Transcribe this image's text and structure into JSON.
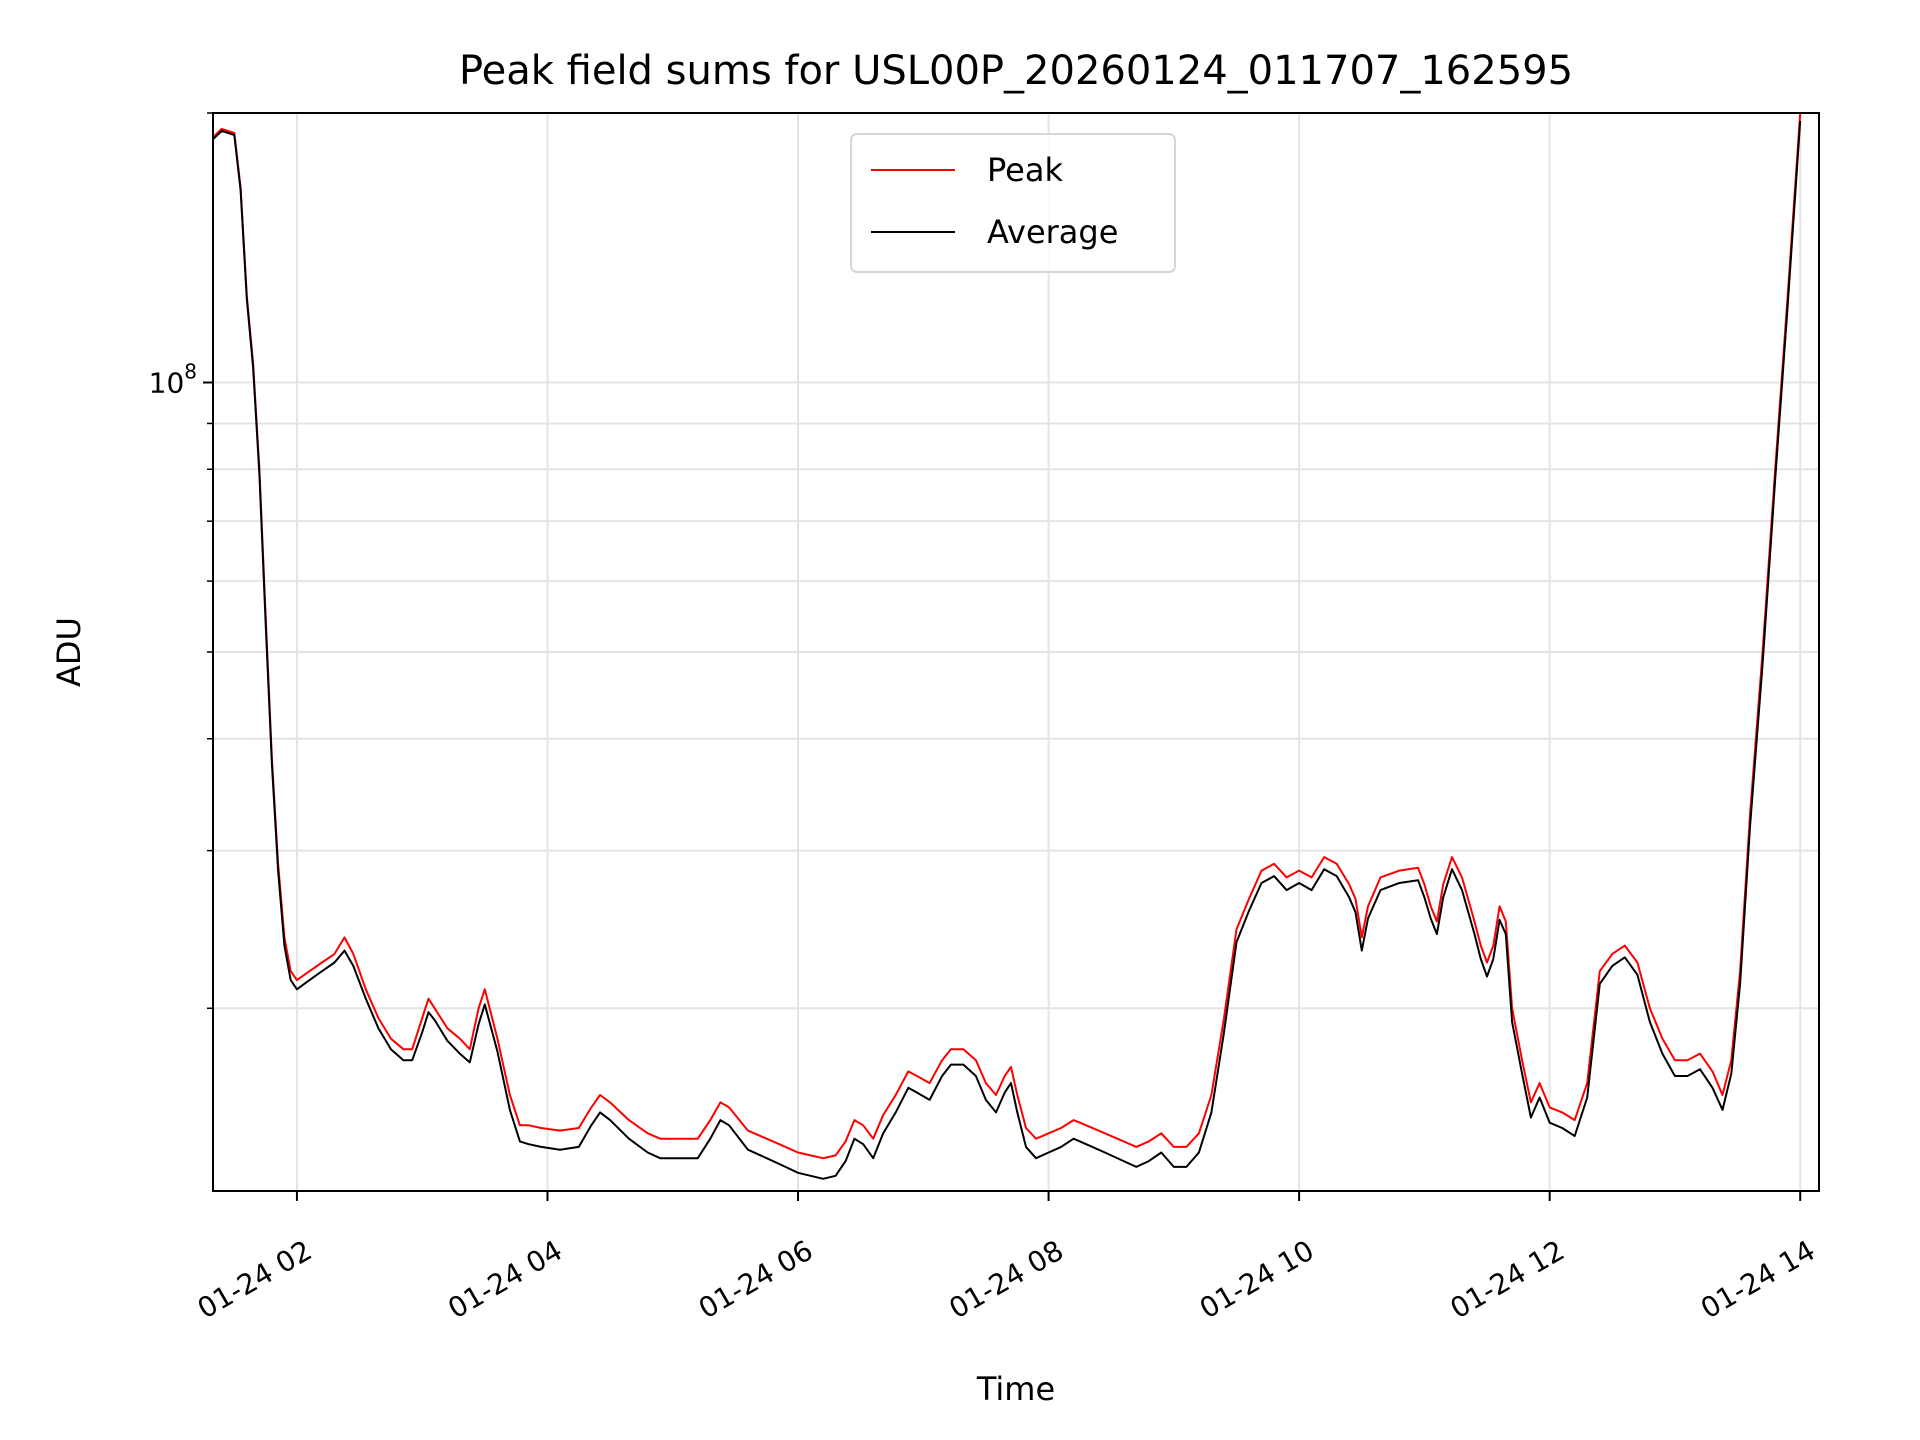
{
  "chart_data": {
    "type": "line",
    "title": "Peak field sums for USL00P_20260124_011707_162595",
    "xlabel": "Time",
    "ylabel": "ADU",
    "x_unit": "hours on 01-24",
    "xlim": [
      1.33,
      14.15
    ],
    "ylim": [
      12500000,
      200000000
    ],
    "yscale": "log",
    "grid": true,
    "legend": {
      "placement": "top-center"
    },
    "x_ticks": [
      2,
      4,
      6,
      8,
      10,
      12,
      14
    ],
    "x_tick_labels": [
      "01-24 02",
      "01-24 04",
      "01-24 06",
      "01-24 08",
      "01-24 10",
      "01-24 12",
      "01-24 14"
    ],
    "y_major_ticks": [
      100000000
    ],
    "y_major_tick_labels": [
      "10^8"
    ],
    "y_minor_ticks": [
      20000000,
      30000000,
      40000000,
      50000000,
      60000000,
      70000000,
      80000000,
      90000000,
      200000000
    ],
    "series": [
      {
        "name": "Peak",
        "color": "#ff0000",
        "points": [
          [
            1.33,
            188000000
          ],
          [
            1.4,
            192000000
          ],
          [
            1.5,
            190000000
          ],
          [
            1.55,
            165000000
          ],
          [
            1.6,
            125000000
          ],
          [
            1.65,
            105000000
          ],
          [
            1.7,
            80000000
          ],
          [
            1.75,
            55000000
          ],
          [
            1.8,
            38000000
          ],
          [
            1.85,
            29000000
          ],
          [
            1.9,
            24000000
          ],
          [
            1.95,
            22000000
          ],
          [
            2.0,
            21500000
          ],
          [
            2.1,
            22000000
          ],
          [
            2.2,
            22500000
          ],
          [
            2.3,
            23000000
          ],
          [
            2.38,
            24000000
          ],
          [
            2.45,
            23000000
          ],
          [
            2.55,
            21000000
          ],
          [
            2.65,
            19500000
          ],
          [
            2.75,
            18500000
          ],
          [
            2.85,
            18000000
          ],
          [
            2.92,
            18000000
          ],
          [
            3.0,
            19500000
          ],
          [
            3.05,
            20500000
          ],
          [
            3.1,
            20000000
          ],
          [
            3.2,
            19000000
          ],
          [
            3.3,
            18500000
          ],
          [
            3.38,
            18000000
          ],
          [
            3.45,
            20000000
          ],
          [
            3.5,
            21000000
          ],
          [
            3.6,
            18500000
          ],
          [
            3.7,
            16000000
          ],
          [
            3.78,
            14800000
          ],
          [
            3.85,
            14800000
          ],
          [
            3.95,
            14700000
          ],
          [
            4.1,
            14600000
          ],
          [
            4.25,
            14700000
          ],
          [
            4.35,
            15500000
          ],
          [
            4.42,
            16000000
          ],
          [
            4.5,
            15700000
          ],
          [
            4.65,
            15000000
          ],
          [
            4.8,
            14500000
          ],
          [
            4.9,
            14300000
          ],
          [
            5.05,
            14300000
          ],
          [
            5.2,
            14300000
          ],
          [
            5.3,
            15000000
          ],
          [
            5.38,
            15700000
          ],
          [
            5.45,
            15500000
          ],
          [
            5.6,
            14600000
          ],
          [
            5.75,
            14300000
          ],
          [
            5.9,
            14000000
          ],
          [
            6.0,
            13800000
          ],
          [
            6.1,
            13700000
          ],
          [
            6.2,
            13600000
          ],
          [
            6.3,
            13700000
          ],
          [
            6.38,
            14200000
          ],
          [
            6.45,
            15000000
          ],
          [
            6.52,
            14800000
          ],
          [
            6.6,
            14300000
          ],
          [
            6.68,
            15200000
          ],
          [
            6.78,
            16000000
          ],
          [
            6.88,
            17000000
          ],
          [
            6.95,
            16800000
          ],
          [
            7.05,
            16500000
          ],
          [
            7.15,
            17500000
          ],
          [
            7.22,
            18000000
          ],
          [
            7.32,
            18000000
          ],
          [
            7.42,
            17500000
          ],
          [
            7.5,
            16500000
          ],
          [
            7.58,
            16000000
          ],
          [
            7.65,
            16800000
          ],
          [
            7.7,
            17200000
          ],
          [
            7.75,
            16000000
          ],
          [
            7.82,
            14700000
          ],
          [
            7.9,
            14300000
          ],
          [
            8.0,
            14500000
          ],
          [
            8.1,
            14700000
          ],
          [
            8.2,
            15000000
          ],
          [
            8.3,
            14800000
          ],
          [
            8.45,
            14500000
          ],
          [
            8.6,
            14200000
          ],
          [
            8.7,
            14000000
          ],
          [
            8.8,
            14200000
          ],
          [
            8.9,
            14500000
          ],
          [
            9.0,
            14000000
          ],
          [
            9.1,
            14000000
          ],
          [
            9.2,
            14500000
          ],
          [
            9.3,
            16000000
          ],
          [
            9.4,
            19500000
          ],
          [
            9.5,
            24500000
          ],
          [
            9.6,
            26500000
          ],
          [
            9.7,
            28500000
          ],
          [
            9.8,
            29000000
          ],
          [
            9.9,
            28000000
          ],
          [
            10.0,
            28500000
          ],
          [
            10.1,
            28000000
          ],
          [
            10.2,
            29500000
          ],
          [
            10.3,
            29000000
          ],
          [
            10.4,
            27500000
          ],
          [
            10.45,
            26500000
          ],
          [
            10.5,
            24000000
          ],
          [
            10.55,
            26000000
          ],
          [
            10.65,
            28000000
          ],
          [
            10.8,
            28500000
          ],
          [
            10.95,
            28700000
          ],
          [
            11.0,
            27500000
          ],
          [
            11.05,
            26000000
          ],
          [
            11.1,
            25000000
          ],
          [
            11.15,
            27500000
          ],
          [
            11.22,
            29500000
          ],
          [
            11.3,
            28000000
          ],
          [
            11.4,
            25000000
          ],
          [
            11.45,
            23500000
          ],
          [
            11.5,
            22500000
          ],
          [
            11.55,
            23500000
          ],
          [
            11.6,
            26000000
          ],
          [
            11.65,
            25000000
          ],
          [
            11.7,
            20000000
          ],
          [
            11.78,
            17500000
          ],
          [
            11.85,
            15700000
          ],
          [
            11.92,
            16500000
          ],
          [
            12.0,
            15500000
          ],
          [
            12.1,
            15300000
          ],
          [
            12.2,
            15000000
          ],
          [
            12.3,
            16500000
          ],
          [
            12.4,
            22000000
          ],
          [
            12.5,
            23000000
          ],
          [
            12.6,
            23500000
          ],
          [
            12.7,
            22500000
          ],
          [
            12.8,
            20000000
          ],
          [
            12.9,
            18500000
          ],
          [
            13.0,
            17500000
          ],
          [
            13.1,
            17500000
          ],
          [
            13.2,
            17800000
          ],
          [
            13.3,
            17000000
          ],
          [
            13.38,
            16000000
          ],
          [
            13.45,
            17500000
          ],
          [
            13.52,
            22000000
          ],
          [
            13.6,
            33000000
          ],
          [
            13.7,
            50000000
          ],
          [
            13.8,
            80000000
          ],
          [
            13.9,
            125000000
          ],
          [
            14.0,
            200000000
          ]
        ]
      },
      {
        "name": "Average",
        "color": "#000000",
        "points": [
          [
            1.33,
            187000000
          ],
          [
            1.4,
            191000000
          ],
          [
            1.5,
            189000000
          ],
          [
            1.55,
            164000000
          ],
          [
            1.6,
            124000000
          ],
          [
            1.65,
            104000000
          ],
          [
            1.7,
            79000000
          ],
          [
            1.75,
            54000000
          ],
          [
            1.8,
            37500000
          ],
          [
            1.85,
            28500000
          ],
          [
            1.9,
            23500000
          ],
          [
            1.95,
            21500000
          ],
          [
            2.0,
            21000000
          ],
          [
            2.1,
            21500000
          ],
          [
            2.2,
            22000000
          ],
          [
            2.3,
            22500000
          ],
          [
            2.38,
            23200000
          ],
          [
            2.45,
            22300000
          ],
          [
            2.55,
            20500000
          ],
          [
            2.65,
            19000000
          ],
          [
            2.75,
            18000000
          ],
          [
            2.85,
            17500000
          ],
          [
            2.92,
            17500000
          ],
          [
            3.0,
            18800000
          ],
          [
            3.05,
            19800000
          ],
          [
            3.1,
            19400000
          ],
          [
            3.2,
            18400000
          ],
          [
            3.3,
            17800000
          ],
          [
            3.38,
            17400000
          ],
          [
            3.45,
            19200000
          ],
          [
            3.5,
            20200000
          ],
          [
            3.6,
            17900000
          ],
          [
            3.7,
            15400000
          ],
          [
            3.78,
            14200000
          ],
          [
            3.85,
            14100000
          ],
          [
            3.95,
            14000000
          ],
          [
            4.1,
            13900000
          ],
          [
            4.25,
            14000000
          ],
          [
            4.35,
            14800000
          ],
          [
            4.42,
            15300000
          ],
          [
            4.5,
            15000000
          ],
          [
            4.65,
            14300000
          ],
          [
            4.8,
            13800000
          ],
          [
            4.9,
            13600000
          ],
          [
            5.05,
            13600000
          ],
          [
            5.2,
            13600000
          ],
          [
            5.3,
            14300000
          ],
          [
            5.38,
            15000000
          ],
          [
            5.45,
            14800000
          ],
          [
            5.6,
            13900000
          ],
          [
            5.75,
            13600000
          ],
          [
            5.9,
            13300000
          ],
          [
            6.0,
            13100000
          ],
          [
            6.1,
            13000000
          ],
          [
            6.2,
            12900000
          ],
          [
            6.3,
            13000000
          ],
          [
            6.38,
            13500000
          ],
          [
            6.45,
            14300000
          ],
          [
            6.52,
            14100000
          ],
          [
            6.6,
            13600000
          ],
          [
            6.68,
            14500000
          ],
          [
            6.78,
            15300000
          ],
          [
            6.88,
            16300000
          ],
          [
            6.95,
            16100000
          ],
          [
            7.05,
            15800000
          ],
          [
            7.15,
            16800000
          ],
          [
            7.22,
            17300000
          ],
          [
            7.32,
            17300000
          ],
          [
            7.42,
            16800000
          ],
          [
            7.5,
            15800000
          ],
          [
            7.58,
            15300000
          ],
          [
            7.65,
            16100000
          ],
          [
            7.7,
            16500000
          ],
          [
            7.75,
            15300000
          ],
          [
            7.82,
            14000000
          ],
          [
            7.9,
            13600000
          ],
          [
            8.0,
            13800000
          ],
          [
            8.1,
            14000000
          ],
          [
            8.2,
            14300000
          ],
          [
            8.3,
            14100000
          ],
          [
            8.45,
            13800000
          ],
          [
            8.6,
            13500000
          ],
          [
            8.7,
            13300000
          ],
          [
            8.8,
            13500000
          ],
          [
            8.9,
            13800000
          ],
          [
            9.0,
            13300000
          ],
          [
            9.1,
            13300000
          ],
          [
            9.2,
            13800000
          ],
          [
            9.3,
            15300000
          ],
          [
            9.4,
            18800000
          ],
          [
            9.5,
            23700000
          ],
          [
            9.6,
            25700000
          ],
          [
            9.7,
            27600000
          ],
          [
            9.8,
            28100000
          ],
          [
            9.9,
            27100000
          ],
          [
            10.0,
            27600000
          ],
          [
            10.1,
            27100000
          ],
          [
            10.2,
            28600000
          ],
          [
            10.3,
            28100000
          ],
          [
            10.4,
            26600000
          ],
          [
            10.45,
            25600000
          ],
          [
            10.5,
            23200000
          ],
          [
            10.55,
            25200000
          ],
          [
            10.65,
            27100000
          ],
          [
            10.8,
            27600000
          ],
          [
            10.95,
            27800000
          ],
          [
            11.0,
            26600000
          ],
          [
            11.05,
            25200000
          ],
          [
            11.1,
            24200000
          ],
          [
            11.15,
            26600000
          ],
          [
            11.22,
            28600000
          ],
          [
            11.3,
            27100000
          ],
          [
            11.4,
            24200000
          ],
          [
            11.45,
            22700000
          ],
          [
            11.5,
            21700000
          ],
          [
            11.55,
            22700000
          ],
          [
            11.6,
            25100000
          ],
          [
            11.65,
            24200000
          ],
          [
            11.7,
            19300000
          ],
          [
            11.78,
            16900000
          ],
          [
            11.85,
            15100000
          ],
          [
            11.92,
            15900000
          ],
          [
            12.0,
            14900000
          ],
          [
            12.1,
            14700000
          ],
          [
            12.2,
            14400000
          ],
          [
            12.3,
            15900000
          ],
          [
            12.4,
            21300000
          ],
          [
            12.5,
            22300000
          ],
          [
            12.6,
            22800000
          ],
          [
            12.7,
            21800000
          ],
          [
            12.8,
            19300000
          ],
          [
            12.9,
            17800000
          ],
          [
            13.0,
            16800000
          ],
          [
            13.1,
            16800000
          ],
          [
            13.2,
            17100000
          ],
          [
            13.3,
            16300000
          ],
          [
            13.38,
            15400000
          ],
          [
            13.45,
            16900000
          ],
          [
            13.52,
            21300000
          ],
          [
            13.6,
            32000000
          ],
          [
            13.7,
            48500000
          ],
          [
            13.8,
            78000000
          ],
          [
            13.9,
            122000000
          ],
          [
            14.0,
            196000000
          ]
        ]
      }
    ]
  }
}
